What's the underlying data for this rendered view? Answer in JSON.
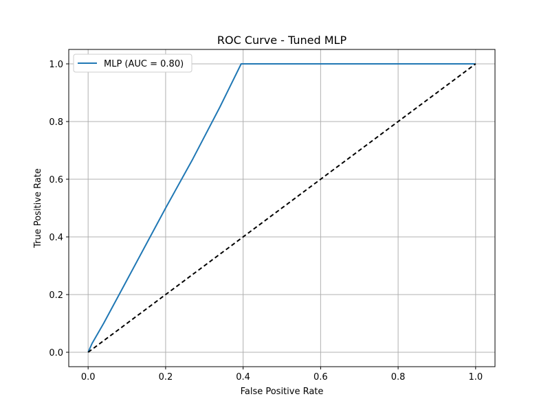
{
  "chart_data": {
    "type": "line",
    "title": "ROC Curve - Tuned MLP",
    "xlabel": "False Positive Rate",
    "ylabel": "True Positive Rate",
    "xlim": [
      -0.05,
      1.05
    ],
    "ylim": [
      -0.05,
      1.05
    ],
    "xticks": [
      0.0,
      0.2,
      0.4,
      0.6,
      0.8,
      1.0
    ],
    "yticks": [
      0.0,
      0.2,
      0.4,
      0.6,
      0.8,
      1.0
    ],
    "xtick_labels": [
      "0.0",
      "0.2",
      "0.4",
      "0.6",
      "0.8",
      "1.0"
    ],
    "ytick_labels": [
      "0.0",
      "0.2",
      "0.4",
      "0.6",
      "0.8",
      "1.0"
    ],
    "grid": true,
    "legend_position": "top-left",
    "series": [
      {
        "name": "MLP (AUC = 0.80)",
        "color": "#1f77b4",
        "style": "solid",
        "x": [
          0.0,
          0.01,
          0.04,
          0.08,
          0.14,
          0.2,
          0.27,
          0.34,
          0.395,
          1.0
        ],
        "y": [
          0.0,
          0.03,
          0.1,
          0.2,
          0.35,
          0.5,
          0.67,
          0.85,
          1.0,
          1.0
        ]
      },
      {
        "color": "#000000",
        "style": "dashed",
        "x": [
          0.0,
          1.0
        ],
        "y": [
          0.0,
          1.0
        ]
      }
    ]
  }
}
